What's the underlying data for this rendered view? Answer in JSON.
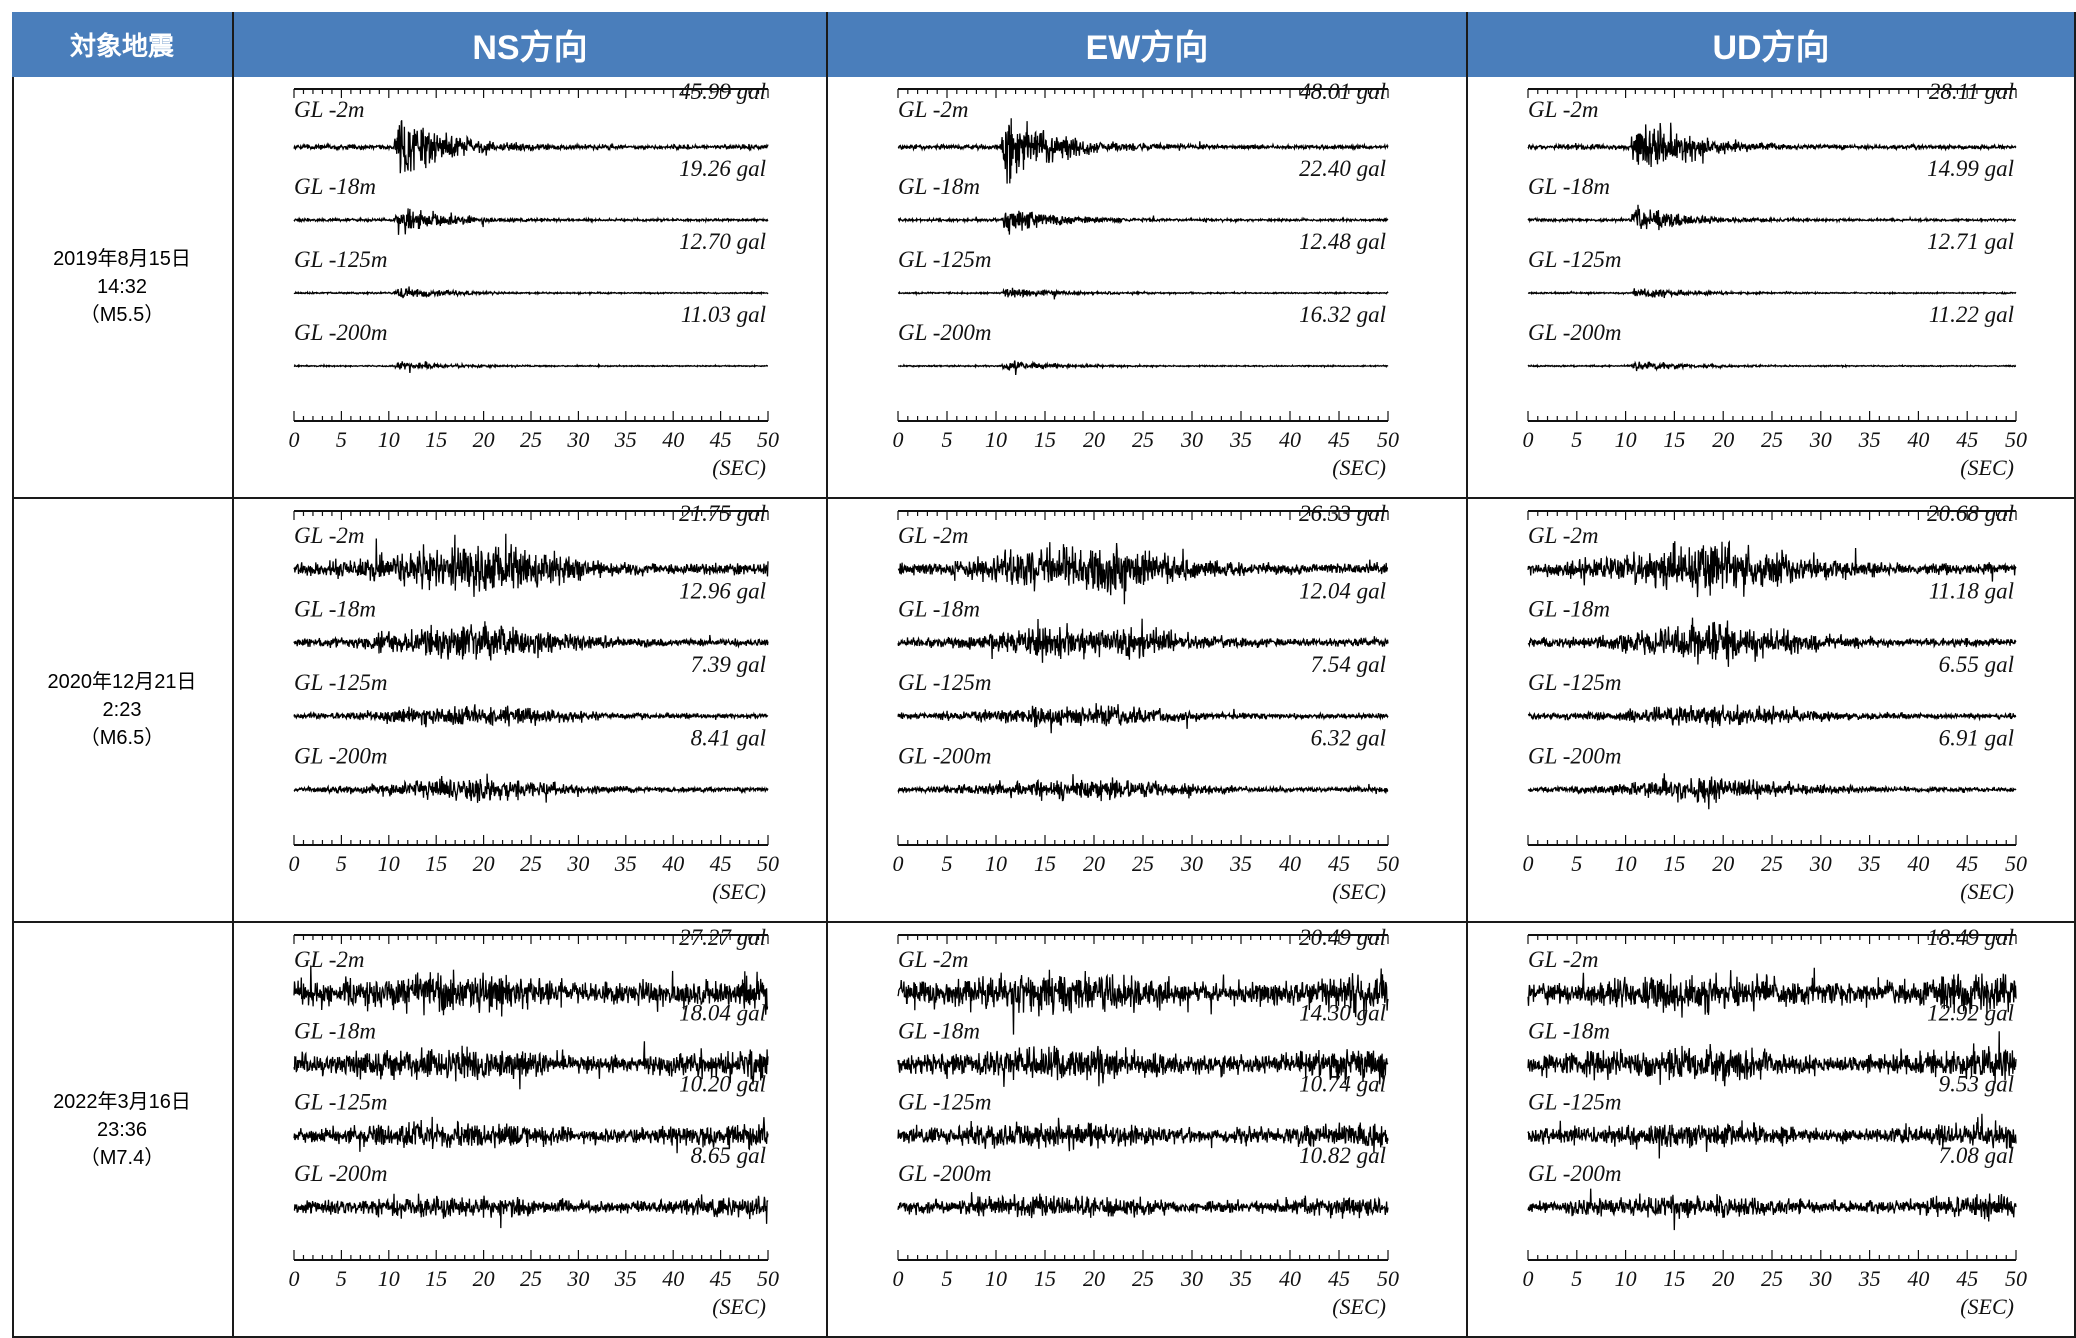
{
  "header": {
    "first": "対象地震",
    "directions": [
      "NS方向",
      "EW方向",
      "UD方向"
    ]
  },
  "colors": {
    "header_bg": "#4a7ebb",
    "trace": "#000000",
    "grid": "#1a1a1a"
  },
  "events": [
    {
      "date": "2019年8月15日",
      "time": "14:32",
      "magnitude": "（M5.5）"
    },
    {
      "date": "2020年12月21日",
      "time": "2:23",
      "magnitude": "（M6.5）"
    },
    {
      "date": "2022年3月16日",
      "time": "23:36",
      "magnitude": "（M7.4）"
    }
  ],
  "chart_data": {
    "type": "line",
    "description_units": "acceleration waveforms, peak values in gal",
    "depth_labels": [
      "GL -2m",
      "GL -18m",
      "GL -125m",
      "GL -200m"
    ],
    "x_ticks": [
      "0",
      "5",
      "10",
      "15",
      "20",
      "25",
      "30",
      "35",
      "40",
      "45",
      "50"
    ],
    "x_unit": "(SEC)",
    "xlim": [
      0,
      50
    ],
    "panels": [
      {
        "event": 0,
        "direction": "NS方向",
        "peaks": [
          "45.99 gal",
          "19.26 gal",
          "12.70 gal",
          "11.03 gal"
        ]
      },
      {
        "event": 0,
        "direction": "EW方向",
        "peaks": [
          "48.01 gal",
          "22.40 gal",
          "12.48 gal",
          "16.32 gal"
        ]
      },
      {
        "event": 0,
        "direction": "UD方向",
        "peaks": [
          "28.11 gal",
          "14.99 gal",
          "12.71 gal",
          "11.22 gal"
        ]
      },
      {
        "event": 1,
        "direction": "NS方向",
        "peaks": [
          "21.75 gal",
          "12.96 gal",
          "7.39 gal",
          "8.41 gal"
        ]
      },
      {
        "event": 1,
        "direction": "EW方向",
        "peaks": [
          "26.33 gal",
          "12.04 gal",
          "7.54 gal",
          "6.32 gal"
        ]
      },
      {
        "event": 1,
        "direction": "UD方向",
        "peaks": [
          "20.68 gal",
          "11.18 gal",
          "6.55 gal",
          "6.91 gal"
        ]
      },
      {
        "event": 2,
        "direction": "NS方向",
        "peaks": [
          "27.27 gal",
          "18.04 gal",
          "10.20 gal",
          "8.65 gal"
        ]
      },
      {
        "event": 2,
        "direction": "EW方向",
        "peaks": [
          "20.49 gal",
          "14.30 gal",
          "10.74 gal",
          "10.82 gal"
        ]
      },
      {
        "event": 2,
        "direction": "UD方向",
        "peaks": [
          "18.49 gal",
          "12.92 gal",
          "9.53 gal",
          "7.08 gal"
        ]
      }
    ]
  }
}
